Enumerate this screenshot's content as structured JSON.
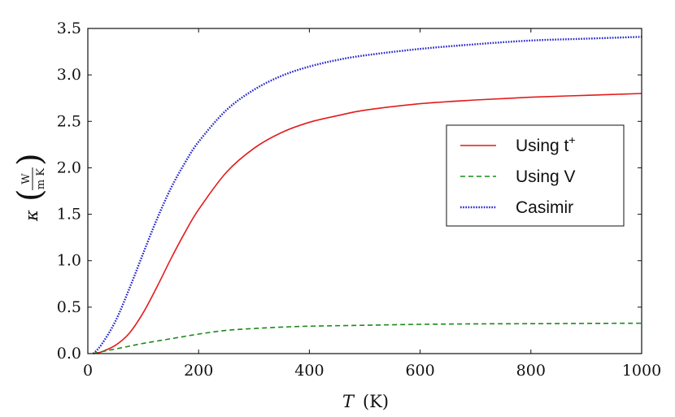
{
  "chart_data": {
    "type": "line",
    "xlabel": {
      "symbol": "T",
      "unit": "(K)"
    },
    "ylabel": {
      "symbol": "κ",
      "unit_num": "W",
      "unit_den": "m K"
    },
    "xlim": [
      0,
      1000
    ],
    "ylim": [
      0,
      3.5
    ],
    "xticks": [
      0,
      200,
      400,
      600,
      800,
      1000
    ],
    "xtick_labels": [
      "0",
      "200",
      "400",
      "600",
      "800",
      "1000"
    ],
    "yticks": [
      0,
      0.5,
      1.0,
      1.5,
      2.0,
      2.5,
      3.0,
      3.5
    ],
    "ytick_labels": [
      "0.0",
      "0.5",
      "1.0",
      "1.5",
      "2.0",
      "2.5",
      "3.0",
      "3.5"
    ],
    "grid": false,
    "legend_position": "right-middle",
    "series": [
      {
        "name": "Using t",
        "name_sup": "+",
        "color": "#e41a1c",
        "style": "solid",
        "x": [
          10,
          25,
          50,
          75,
          100,
          125,
          150,
          175,
          200,
          250,
          300,
          350,
          400,
          450,
          500,
          600,
          700,
          800,
          900,
          1000
        ],
        "y": [
          0.0,
          0.02,
          0.09,
          0.22,
          0.44,
          0.72,
          1.02,
          1.3,
          1.55,
          1.95,
          2.21,
          2.38,
          2.49,
          2.56,
          2.62,
          2.69,
          2.73,
          2.76,
          2.78,
          2.8
        ]
      },
      {
        "name": "Using V",
        "color": "#1a8a1a",
        "style": "dashed",
        "x": [
          10,
          25,
          50,
          75,
          100,
          150,
          200,
          250,
          300,
          350,
          400,
          500,
          600,
          700,
          800,
          900,
          1000
        ],
        "y": [
          0.0,
          0.02,
          0.05,
          0.08,
          0.11,
          0.16,
          0.21,
          0.25,
          0.27,
          0.285,
          0.295,
          0.305,
          0.315,
          0.32,
          0.322,
          0.325,
          0.327
        ]
      },
      {
        "name": "Casimir",
        "color": "#2222cc",
        "style": "dotted",
        "x": [
          10,
          25,
          50,
          75,
          100,
          125,
          150,
          175,
          200,
          250,
          300,
          350,
          400,
          450,
          500,
          600,
          700,
          800,
          900,
          1000
        ],
        "y": [
          0.0,
          0.1,
          0.35,
          0.7,
          1.08,
          1.45,
          1.78,
          2.05,
          2.28,
          2.62,
          2.84,
          2.99,
          3.09,
          3.16,
          3.21,
          3.28,
          3.33,
          3.37,
          3.39,
          3.41
        ]
      }
    ]
  }
}
